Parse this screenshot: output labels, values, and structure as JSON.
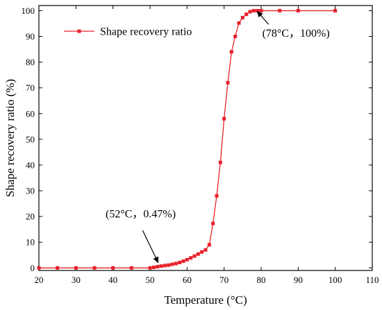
{
  "chart_data": {
    "type": "line",
    "xlabel": "Temperature (°C)",
    "ylabel": "Shape recovery ratio (%)",
    "xlim": [
      20,
      110
    ],
    "ylim": [
      -1,
      102
    ],
    "xticks": [
      20,
      30,
      40,
      50,
      60,
      70,
      80,
      90,
      100,
      110
    ],
    "yticks": [
      0,
      10,
      20,
      30,
      40,
      50,
      60,
      70,
      80,
      90,
      100
    ],
    "grid": false,
    "legend_position": "top-left",
    "series": [
      {
        "name": "Shape recovery ratio",
        "color": "#e8202a",
        "marker": "square",
        "x": [
          20,
          25,
          30,
          35,
          40,
          45,
          50,
          51,
          52,
          53,
          54,
          55,
          56,
          57,
          58,
          59,
          60,
          61,
          62,
          63,
          64,
          65,
          66,
          67,
          68,
          69,
          70,
          71,
          72,
          73,
          74,
          75,
          76,
          77,
          78,
          79,
          80,
          85,
          90,
          100
        ],
        "y": [
          0,
          0,
          0,
          0,
          0,
          0,
          0,
          0.2,
          0.47,
          0.7,
          0.9,
          1.1,
          1.4,
          1.7,
          2.1,
          2.6,
          3.2,
          3.9,
          4.6,
          5.4,
          6.2,
          7.0,
          9.0,
          17.3,
          28,
          41,
          58,
          72,
          84,
          90,
          95.2,
          97.3,
          98.6,
          99.6,
          100,
          100,
          100,
          100,
          100,
          100
        ]
      }
    ],
    "annotations": [
      {
        "text": "(52°C，0.47%)",
        "x": 52,
        "y": 0.47
      },
      {
        "text": "(78°C，100%)",
        "x": 78,
        "y": 100
      }
    ]
  }
}
